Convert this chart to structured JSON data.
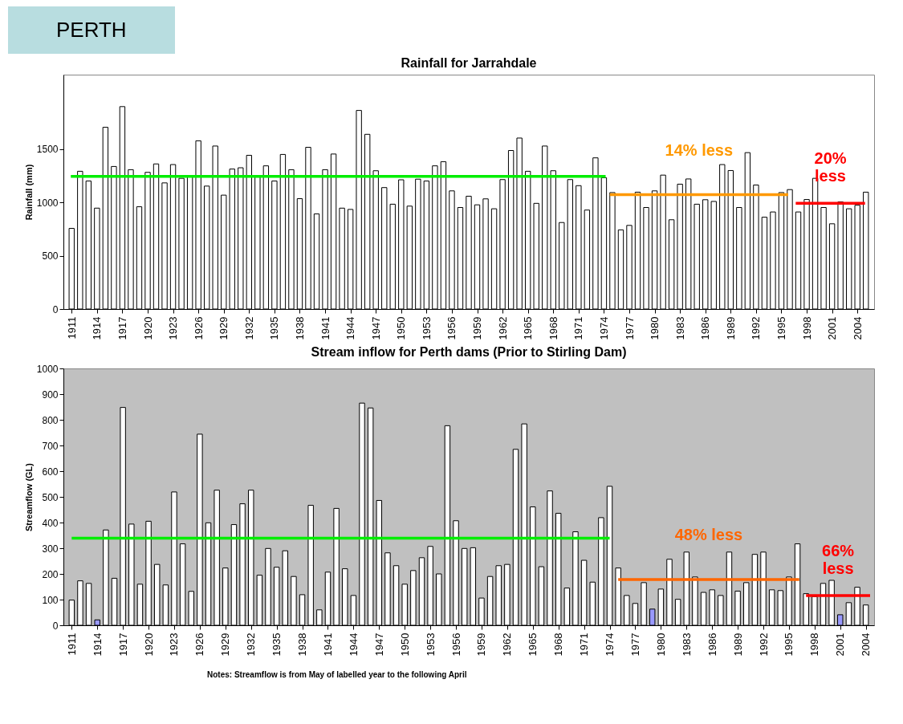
{
  "chart_data": [
    {
      "type": "bar",
      "title": "Rainfall for Jarrahdale",
      "ylabel": "Rainfall (mm)",
      "annotations": [
        "PERTH",
        {
          "text": "14% less",
          "x": 1985.25,
          "y": 1073
        },
        {
          "text": "20%\nless",
          "x": 2000.8,
          "y": 992
        }
      ],
      "x": [
        1911,
        1912,
        1913,
        1914,
        1915,
        1916,
        1917,
        1918,
        1919,
        1920,
        1921,
        1922,
        1923,
        1924,
        1925,
        1926,
        1927,
        1928,
        1929,
        1930,
        1931,
        1932,
        1933,
        1934,
        1935,
        1936,
        1937,
        1938,
        1939,
        1940,
        1941,
        1942,
        1943,
        1944,
        1945,
        1946,
        1947,
        1948,
        1949,
        1950,
        1951,
        1952,
        1953,
        1954,
        1955,
        1956,
        1957,
        1958,
        1959,
        1960,
        1961,
        1962,
        1963,
        1964,
        1965,
        1966,
        1967,
        1968,
        1969,
        1970,
        1971,
        1972,
        1973,
        1974,
        1975,
        1976,
        1977,
        1978,
        1979,
        1980,
        1981,
        1982,
        1983,
        1984,
        1985,
        1986,
        1987,
        1988,
        1989,
        1990,
        1991,
        1992,
        1993,
        1994,
        1995,
        1996,
        1997,
        1998,
        1999,
        2000,
        2001,
        2002,
        2003,
        2004,
        2005
      ],
      "xlim": [
        1910.5,
        2005.5
      ],
      "ylim": [
        0,
        2200
      ],
      "yticks": [
        0,
        500,
        1000,
        1500
      ],
      "xticks": [
        1911,
        1914,
        1917,
        1920,
        1923,
        1926,
        1929,
        1932,
        1935,
        1938,
        1941,
        1944,
        1947,
        1950,
        1953,
        1956,
        1959,
        1962,
        1965,
        1968,
        1971,
        1974,
        1977,
        1980,
        1983,
        1986,
        1989,
        1992,
        1995,
        1998,
        2001,
        2004
      ],
      "series": [
        {
          "color": "#ffffff",
          "values": [
            757,
            1293,
            1202,
            947,
            1706,
            1338,
            1900,
            1308,
            960,
            1283,
            1362,
            1184,
            1356,
            1227,
            1253,
            1579,
            1154,
            1530,
            1069,
            1314,
            1326,
            1443,
            1239,
            1344,
            1202,
            1451,
            1308,
            1036,
            1518,
            893,
            1308,
            1455,
            947,
            935,
            1864,
            1640,
            1298,
            1140,
            984,
            1213,
            966,
            1219,
            1202,
            1344,
            1383,
            1109,
            953,
            1059,
            978,
            1034,
            941,
            1215,
            1488,
            1605,
            1293,
            992,
            1530,
            1298,
            812,
            1215,
            1158,
            929,
            1419,
            1233,
            1093,
            743,
            785,
            1097,
            953,
            1109,
            1257,
            838,
            1172,
            1221,
            984,
            1026,
            1010,
            1356,
            1300,
            953,
            1468,
            1164,
            862,
            911,
            1093,
            1121,
            911,
            1028,
            1227,
            953,
            800,
            1006,
            941,
            974,
            1097
          ]
        },
        {
          "type": "line",
          "color": "#00ee00",
          "x": [
            1910.9,
            1974.2
          ],
          "values": [
            1245,
            1245
          ]
        },
        {
          "type": "line",
          "color": "#ff9900",
          "x": [
            1974.7,
            1995.8
          ],
          "values": [
            1073,
            1073
          ]
        },
        {
          "type": "line",
          "color": "#ff0000",
          "x": [
            1996.7,
            2004.9
          ],
          "values": [
            992,
            992
          ]
        }
      ]
    },
    {
      "type": "bar",
      "title": "Stream inflow for Perth dams  (Prior to Stirling Dam)",
      "ylabel": "Streamflow (GL)",
      "annotations": [
        "Notes:  Streamflow is from May of labelled year to the following April",
        {
          "text": "48% less",
          "x": 1985.6,
          "y": 178
        },
        {
          "text": "66%\nless",
          "x": 2000.75,
          "y": 116
        }
      ],
      "x": [
        1911,
        1912,
        1913,
        1914,
        1915,
        1916,
        1917,
        1918,
        1919,
        1920,
        1921,
        1922,
        1923,
        1924,
        1925,
        1926,
        1927,
        1928,
        1929,
        1930,
        1931,
        1932,
        1933,
        1934,
        1935,
        1936,
        1937,
        1938,
        1939,
        1940,
        1941,
        1942,
        1943,
        1944,
        1945,
        1946,
        1947,
        1948,
        1949,
        1950,
        1951,
        1952,
        1953,
        1954,
        1955,
        1956,
        1957,
        1958,
        1959,
        1960,
        1961,
        1962,
        1963,
        1964,
        1965,
        1966,
        1967,
        1968,
        1969,
        1970,
        1971,
        1972,
        1973,
        1974,
        1975,
        1976,
        1977,
        1978,
        1979,
        1980,
        1981,
        1982,
        1983,
        1984,
        1985,
        1986,
        1987,
        1988,
        1989,
        1990,
        1991,
        1992,
        1993,
        1994,
        1995,
        1996,
        1997,
        1998,
        1999,
        2000,
        2001,
        2002,
        2003,
        2004
      ],
      "xlim": [
        1910.5,
        2004.5
      ],
      "ylim": [
        0,
        1000
      ],
      "yticks": [
        0,
        100,
        200,
        300,
        400,
        500,
        600,
        700,
        800,
        900,
        1000
      ],
      "xticks": [
        1911,
        1914,
        1917,
        1920,
        1923,
        1926,
        1929,
        1932,
        1935,
        1938,
        1941,
        1944,
        1947,
        1950,
        1953,
        1956,
        1959,
        1962,
        1965,
        1968,
        1971,
        1974,
        1977,
        1980,
        1983,
        1986,
        1989,
        1992,
        1995,
        1998,
        2001,
        2004
      ],
      "series": [
        {
          "colors": [
            "#ffffff",
            "#ffffff",
            "#ffffff",
            "#9999ff",
            "#ffffff",
            "#ffffff",
            "#ffffff",
            "#ffffff",
            "#ffffff",
            "#ffffff",
            "#ffffff",
            "#ffffff",
            "#ffffff",
            "#ffffff",
            "#ffffff",
            "#ffffff",
            "#ffffff",
            "#ffffff",
            "#ffffff",
            "#ffffff",
            "#ffffff",
            "#ffffff",
            "#ffffff",
            "#ffffff",
            "#ffffff",
            "#ffffff",
            "#ffffff",
            "#ffffff",
            "#ffffff",
            "#ffffff",
            "#ffffff",
            "#ffffff",
            "#ffffff",
            "#ffffff",
            "#ffffff",
            "#ffffff",
            "#ffffff",
            "#ffffff",
            "#ffffff",
            "#ffffff",
            "#ffffff",
            "#ffffff",
            "#ffffff",
            "#ffffff",
            "#ffffff",
            "#ffffff",
            "#ffffff",
            "#ffffff",
            "#ffffff",
            "#ffffff",
            "#ffffff",
            "#ffffff",
            "#ffffff",
            "#ffffff",
            "#ffffff",
            "#ffffff",
            "#ffffff",
            "#ffffff",
            "#ffffff",
            "#ffffff",
            "#ffffff",
            "#ffffff",
            "#ffffff",
            "#ffffff",
            "#ffffff",
            "#ffffff",
            "#ffffff",
            "#ffffff",
            "#9999ff",
            "#ffffff",
            "#ffffff",
            "#ffffff",
            "#ffffff",
            "#ffffff",
            "#ffffff",
            "#ffffff",
            "#ffffff",
            "#ffffff",
            "#ffffff",
            "#ffffff",
            "#ffffff",
            "#ffffff",
            "#ffffff",
            "#ffffff",
            "#ffffff",
            "#ffffff",
            "#ffffff",
            "#ffffff",
            "#ffffff",
            "#ffffff",
            "#9999ff",
            "#ffffff",
            "#ffffff",
            "#ffffff"
          ],
          "values": [
            98,
            173,
            163,
            21,
            371,
            183,
            848,
            394,
            160,
            405,
            237,
            157,
            519,
            317,
            132,
            744,
            399,
            526,
            223,
            392,
            473,
            526,
            195,
            299,
            226,
            290,
            190,
            119,
            467,
            60,
            207,
            455,
            220,
            116,
            865,
            846,
            486,
            282,
            232,
            160,
            213,
            263,
            307,
            200,
            777,
            407,
            299,
            302,
            106,
            190,
            232,
            237,
            685,
            784,
            461,
            228,
            523,
            436,
            145,
            364,
            253,
            168,
            419,
            541,
            223,
            116,
            85,
            166,
            63,
            141,
            257,
            101,
            285,
            188,
            128,
            138,
            116,
            285,
            133,
            166,
            276,
            285,
            138,
            135,
            188,
            317,
            123,
            112,
            163,
            175,
            41,
            88,
            148,
            79
          ]
        },
        {
          "type": "line",
          "color": "#00ee00",
          "x": [
            1911,
            1974
          ],
          "values": [
            339,
            339
          ]
        },
        {
          "type": "line",
          "color": "#ff6600",
          "x": [
            1975,
            1996.2
          ],
          "values": [
            178,
            178
          ]
        },
        {
          "type": "line",
          "color": "#ff0000",
          "x": [
            1997,
            2004.5
          ],
          "values": [
            116,
            116
          ]
        }
      ]
    }
  ]
}
